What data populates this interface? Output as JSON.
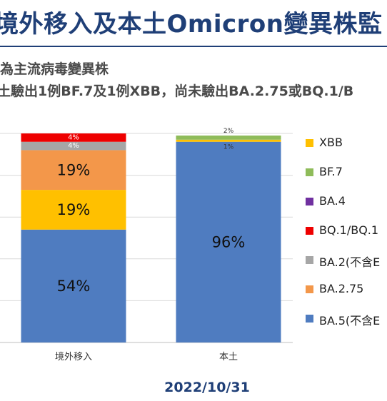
{
  "header": {
    "title": "境外移入及本土Omicron變異株監",
    "subtitle_line1": "為主流病毒變異株",
    "subtitle_line2": "土驗出1例BF.7及1例XBB，尚未驗出BA.2.75或BQ.1/B"
  },
  "footer": {
    "date": "2022/10/31"
  },
  "chart_data": {
    "type": "bar",
    "stacked": true,
    "categories": [
      "境外移入",
      "本土"
    ],
    "ylim": [
      0,
      100
    ],
    "grid": true,
    "legend_position": "right",
    "series": [
      {
        "name": "BA.5(不含E",
        "color": "#4f7cc0",
        "values": [
          54,
          96
        ],
        "labels": [
          "54%",
          "96%"
        ],
        "label_color": "#111111"
      },
      {
        "name": "BA.2.75",
        "color": "#f3974a",
        "values": [
          19,
          0
        ],
        "labels": [
          "19%",
          ""
        ],
        "label_color": "#111111"
      },
      {
        "name": "BA.2(不含E",
        "color": "#a6a6a6",
        "values": [
          4,
          0
        ],
        "labels": [
          "4%",
          ""
        ],
        "label_color": "#ffffff"
      },
      {
        "name": "BQ.1/BQ.1",
        "color": "#ee0000",
        "values": [
          4,
          0
        ],
        "labels": [
          "4%",
          ""
        ],
        "label_color": "#ffffff"
      },
      {
        "name": "BA.4",
        "color": "#7030a0",
        "values": [
          0,
          0
        ],
        "labels": [
          "",
          ""
        ],
        "label_color": "#111111"
      },
      {
        "name": "BF.7",
        "color": "#8fbc5a",
        "values": [
          0,
          2
        ],
        "labels": [
          "",
          "2%"
        ],
        "label_color": "#ffffff"
      },
      {
        "name": "XBB",
        "color": "#ffc000",
        "values": [
          19,
          1
        ],
        "labels": [
          "19%",
          "1%"
        ],
        "label_color": "#111111"
      }
    ],
    "stack_order": [
      "BA.5(不含E",
      "XBB",
      "BA.2.75",
      "BA.2(不含E",
      "BQ.1/BQ.1",
      "BA.4",
      "BF.7"
    ],
    "legend_order": [
      "XBB",
      "BF.7",
      "BA.4",
      "BQ.1/BQ.1",
      "BA.2(不含E",
      "BA.2.75",
      "BA.5(不含E"
    ]
  }
}
